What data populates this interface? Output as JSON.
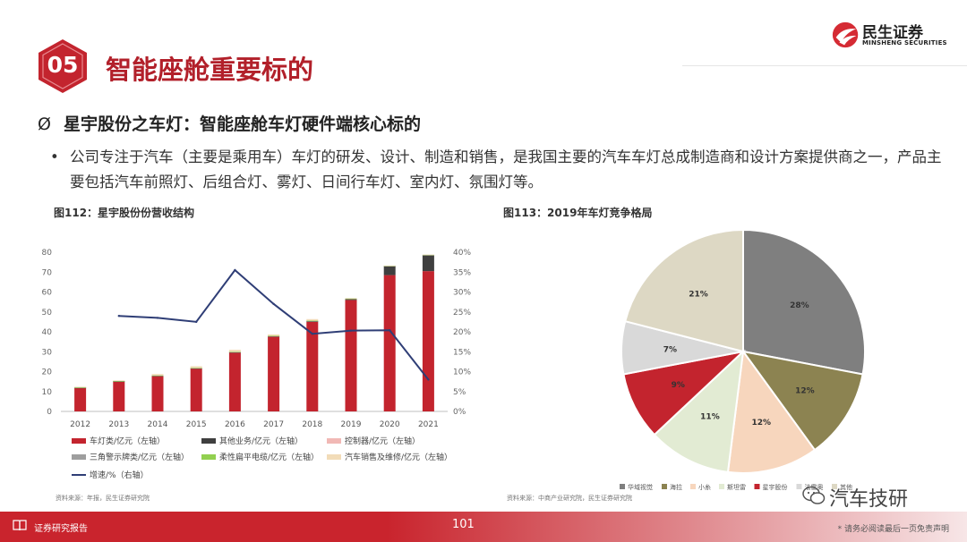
{
  "header": {
    "section_number": "05",
    "title": "智能座舱重要标的",
    "logo_cn": "民生证券",
    "logo_en": "MINSHENG SECURITIES"
  },
  "subheading": {
    "symbol": "Ø",
    "text": "星宇股份之车灯：智能座舱车灯硬件端核心标的"
  },
  "bullet": "公司专注于汽车（主要是乘用车）车灯的研发、设计、制造和销售，是我国主要的汽车车灯总成制造商和设计方案提供商之一，产品主要包括汽车前照灯、后组合灯、雾灯、日间行车灯、室内灯、氛围灯等。",
  "figures": {
    "left_caption": "图112：星宇股份份营收结构",
    "right_caption": "图113：2019年车灯竞争格局",
    "left_source": "资料来源：年报，民生证券研究院",
    "right_source": "资料来源：中商产业研究院，民生证券研究院"
  },
  "chart_data": [
    {
      "type": "bar",
      "title": "",
      "categories": [
        "2012",
        "2013",
        "2014",
        "2015",
        "2016",
        "2017",
        "2018",
        "2019",
        "2020",
        "2021"
      ],
      "y_ticks": [
        "0",
        "10",
        "20",
        "30",
        "40",
        "50",
        "60",
        "70",
        "80"
      ],
      "y2_ticks": [
        "0%",
        "5%",
        "10%",
        "15%",
        "20%",
        "25%",
        "30%",
        "35%",
        "40%"
      ],
      "ylim": [
        0,
        80
      ],
      "y2lim": [
        0,
        40
      ],
      "stacked": true,
      "colors": {
        "car_lights": "#c3242e",
        "other": "#3f3f3f",
        "controller": "#f1b8b5",
        "triangle": "#9e9e9e",
        "flex_cable": "#92d050",
        "sales_repair": "#f2dcb8",
        "growth": "#2f3e76"
      },
      "series": [
        {
          "name": "车灯类/亿元（左轴）",
          "key": "car_lights",
          "values": [
            11.8,
            15.0,
            17.8,
            21.5,
            29.5,
            37.5,
            45.0,
            56.0,
            68.5,
            70.5
          ]
        },
        {
          "name": "其他业务/亿元（左轴）",
          "key": "other",
          "values": [
            0.1,
            0.1,
            0.1,
            0.2,
            0.3,
            0.3,
            0.4,
            0.5,
            4.5,
            8.0
          ]
        },
        {
          "name": "控制器/亿元（左轴）",
          "key": "controller",
          "values": [
            0,
            0,
            0,
            0,
            0,
            0,
            0,
            0,
            0,
            0
          ]
        },
        {
          "name": "三角警示牌类/亿元（左轴）",
          "key": "triangle",
          "values": [
            0.1,
            0.1,
            0.1,
            0.1,
            0.1,
            0.1,
            0.1,
            0.1,
            0.1,
            0.1
          ]
        },
        {
          "name": "柔性扁平电缆/亿元（左轴）",
          "key": "flex_cable",
          "values": [
            0.1,
            0.1,
            0.1,
            0.1,
            0.1,
            0.1,
            0.1,
            0.1,
            0.1,
            0.1
          ]
        },
        {
          "name": "汽车销售及维修/亿元（左轴）",
          "key": "sales_repair",
          "values": [
            0.3,
            0.3,
            0.7,
            0.8,
            1.0,
            0.7,
            0.8,
            0.3,
            0.1,
            0.1
          ]
        }
      ],
      "line_series": {
        "name": "增速/%（右轴）",
        "key": "growth",
        "x": [
          "2013",
          "2014",
          "2015",
          "2016",
          "2017",
          "2018",
          "2019",
          "2020",
          "2021"
        ],
        "values": [
          24,
          23.5,
          22.5,
          35.5,
          27,
          19.5,
          20.3,
          20.4,
          8
        ]
      }
    },
    {
      "type": "pie",
      "title": "",
      "slices": [
        {
          "name": "华域视觉",
          "value": 28,
          "label": "28%",
          "color": "#7f7f7f"
        },
        {
          "name": "海拉",
          "value": 12,
          "label": "12%",
          "color": "#8c8351"
        },
        {
          "name": "小糸",
          "value": 12,
          "label": "12%",
          "color": "#f7d6bd"
        },
        {
          "name": "斯坦雷",
          "value": 11,
          "label": "11%",
          "color": "#e2ebd3"
        },
        {
          "name": "星宇股份",
          "value": 9,
          "label": "9%",
          "color": "#c3242e"
        },
        {
          "name": "法雷奥",
          "value": 7,
          "label": "7%",
          "color": "#d9d9d9"
        },
        {
          "name": "其他",
          "value": 21,
          "label": "21%",
          "color": "#ddd8c4"
        }
      ],
      "legend_labels": [
        "华域视觉",
        "海拉",
        "小糸",
        "斯坦雷",
        "星宇股份",
        "法雷奥",
        "其他"
      ]
    }
  ],
  "watermark": "汽车技研",
  "footer": {
    "label": "证券研究报告",
    "page": "101",
    "disclaimer": "* 请务必阅读最后一页免责声明"
  }
}
